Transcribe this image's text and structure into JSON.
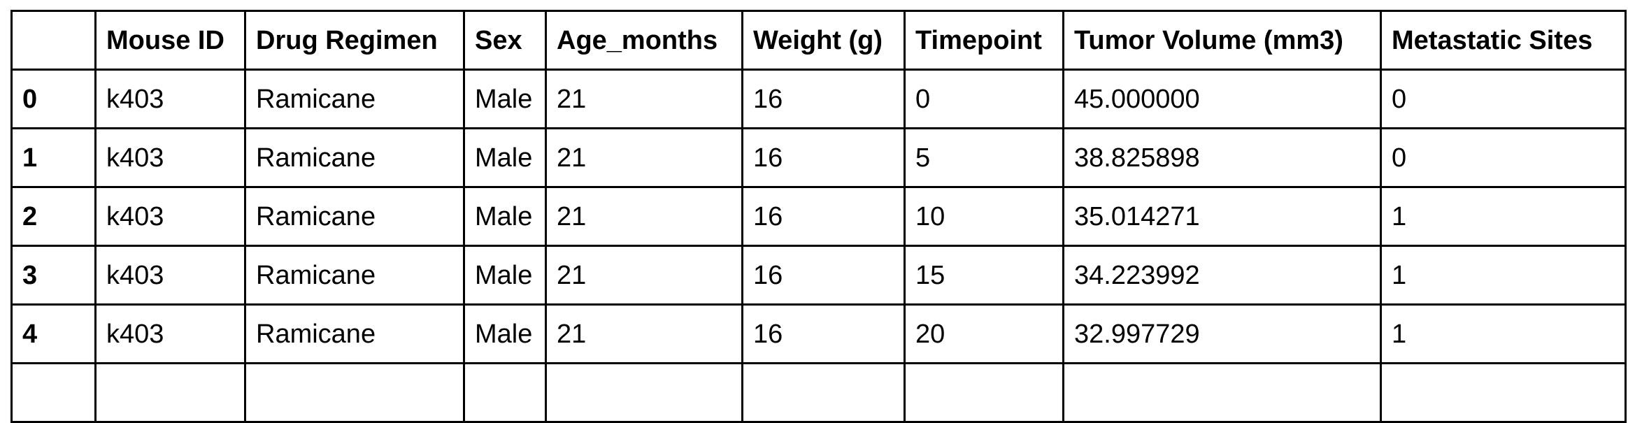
{
  "table": {
    "columns": [
      "",
      "Mouse ID",
      "Drug Regimen",
      "Sex",
      "Age_months",
      "Weight (g)",
      "Timepoint",
      "Tumor Volume (mm3)",
      "Metastatic Sites"
    ],
    "rows": [
      {
        "index": "0",
        "mouse_id": "k403",
        "drug_regimen": "Ramicane",
        "sex": "Male",
        "age_months": "21",
        "weight": "16",
        "timepoint": "0",
        "tumor_volume": "45.000000",
        "metastatic_sites": "0"
      },
      {
        "index": "1",
        "mouse_id": "k403",
        "drug_regimen": "Ramicane",
        "sex": "Male",
        "age_months": "21",
        "weight": "16",
        "timepoint": "5",
        "tumor_volume": "38.825898",
        "metastatic_sites": "0"
      },
      {
        "index": "2",
        "mouse_id": "k403",
        "drug_regimen": "Ramicane",
        "sex": "Male",
        "age_months": "21",
        "weight": "16",
        "timepoint": "10",
        "tumor_volume": "35.014271",
        "metastatic_sites": "1"
      },
      {
        "index": "3",
        "mouse_id": "k403",
        "drug_regimen": "Ramicane",
        "sex": "Male",
        "age_months": "21",
        "weight": "16",
        "timepoint": "15",
        "tumor_volume": "34.223992",
        "metastatic_sites": "1"
      },
      {
        "index": "4",
        "mouse_id": "k403",
        "drug_regimen": "Ramicane",
        "sex": "Male",
        "age_months": "21",
        "weight": "16",
        "timepoint": "20",
        "tumor_volume": "32.997729",
        "metastatic_sites": "1"
      }
    ]
  }
}
